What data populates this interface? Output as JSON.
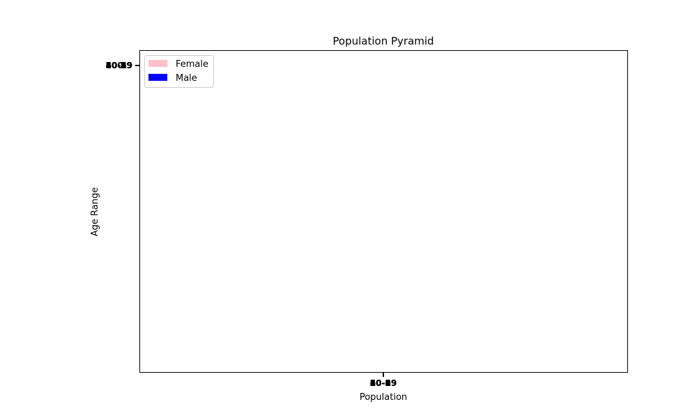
{
  "chart_data": {
    "type": "bar",
    "orientation": "horizontal",
    "title": "Population Pyramid",
    "xlabel": "Population",
    "ylabel": "Age Range",
    "x_ticks_overlapping": [
      "60-69",
      "50-59",
      "40-49",
      "30-39",
      "20-29",
      "10-19",
      "0-9"
    ],
    "y_ticks_overlapping": [
      "60-69",
      "50-59",
      "40-49",
      "30-39",
      "20-29",
      "10-19",
      "0-9"
    ],
    "legend_position": "upper-left",
    "grid": false,
    "series": [
      {
        "name": "Female",
        "color": "#ffc0cb"
      },
      {
        "name": "Male",
        "color": "#0000ff"
      }
    ]
  }
}
